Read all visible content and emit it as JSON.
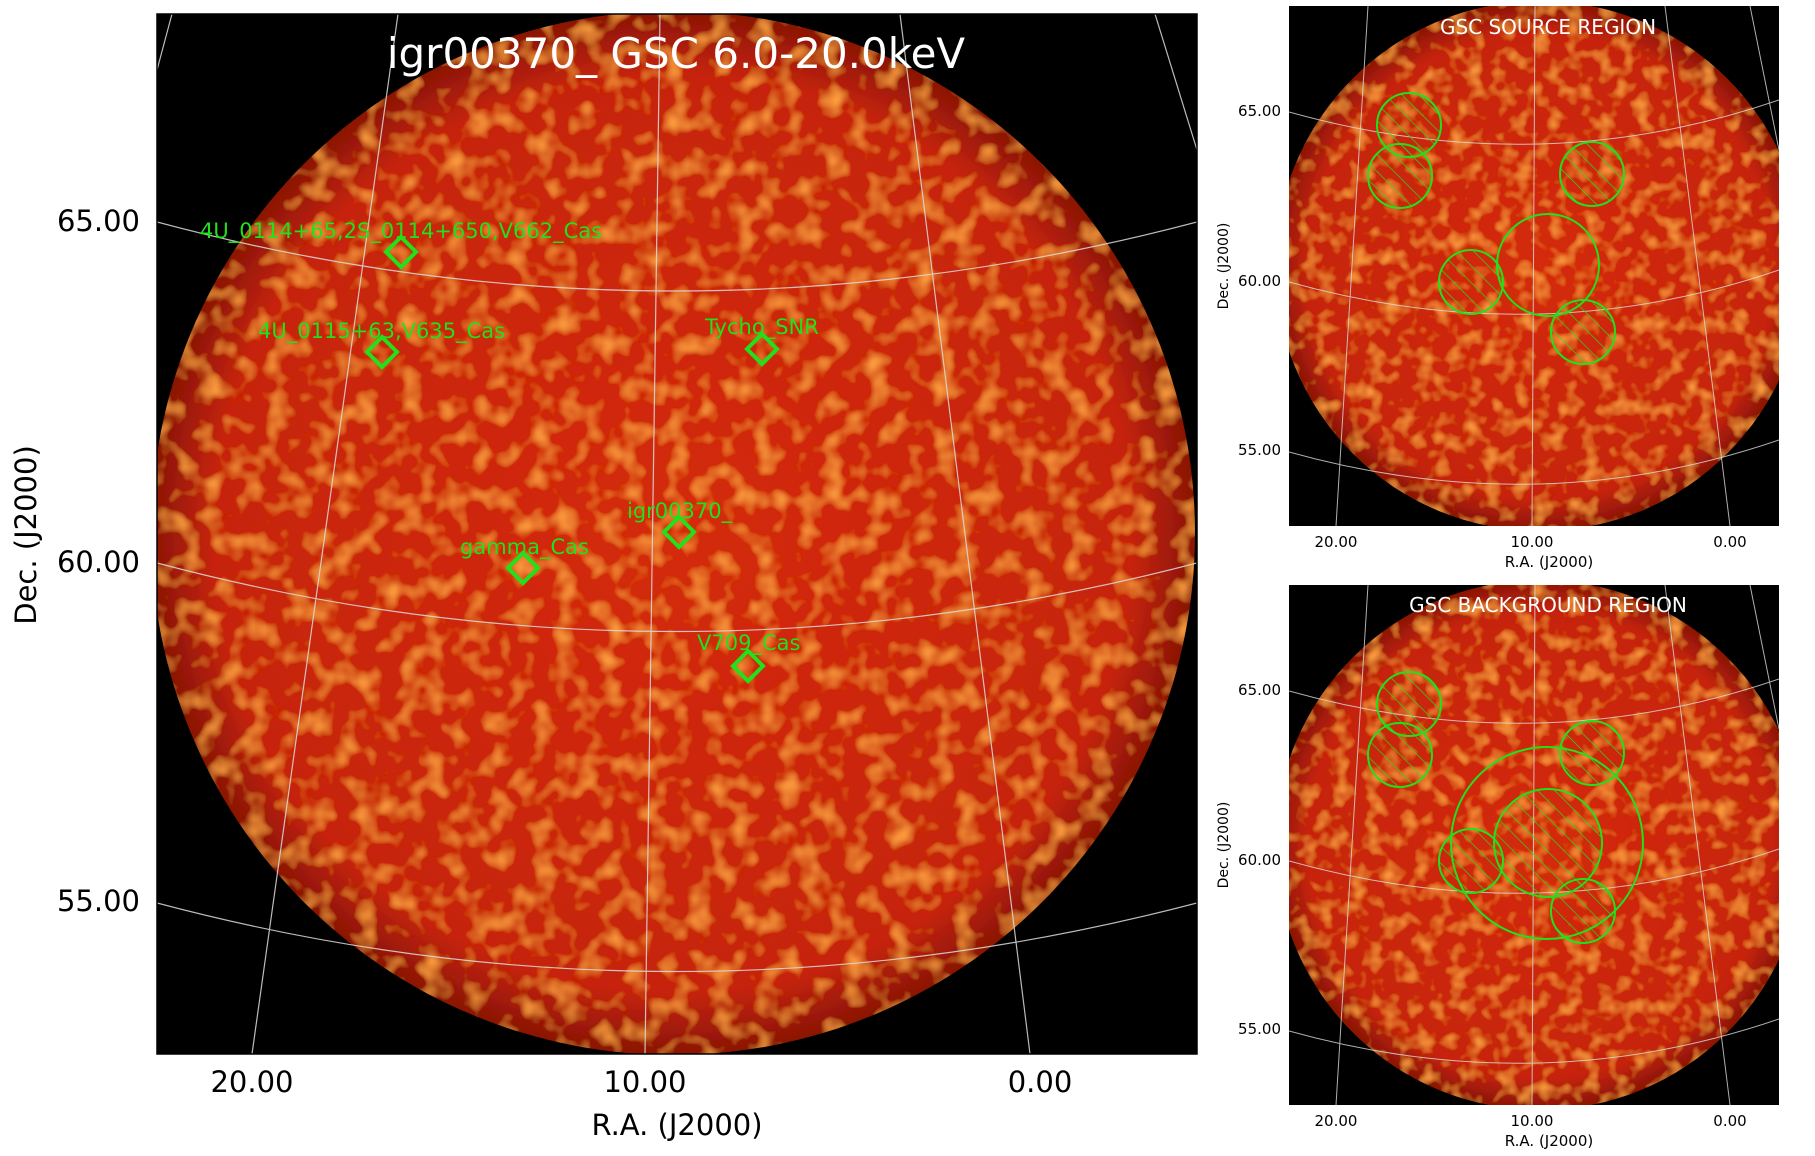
{
  "main_panel": {
    "title": "igr00370_ GSC 6.0-20.0keV",
    "xlabel": "R.A. (J2000)",
    "ylabel": "Dec. (J2000)",
    "xticks": [
      "20.00",
      "10.00",
      "0.00"
    ],
    "yticks": [
      "65.00",
      "60.00",
      "55.00"
    ],
    "sources": [
      {
        "label": "4U_0114+65,2S_0114+650,V662_Cas"
      },
      {
        "label": "4U_0115+63,V635_Cas"
      },
      {
        "label": "Tycho_SNR"
      },
      {
        "label": "igr00370_"
      },
      {
        "label": "gamma_Cas"
      },
      {
        "label": "V709_Cas"
      }
    ]
  },
  "source_panel": {
    "title": "GSC SOURCE REGION",
    "xlabel": "R.A. (J2000)",
    "ylabel": "Dec. (J2000)",
    "xticks": [
      "20.00",
      "10.00",
      "0.00"
    ],
    "yticks": [
      "65.00",
      "60.00",
      "55.00"
    ]
  },
  "background_panel": {
    "title": "GSC BACKGROUND REGION",
    "xlabel": "R.A. (J2000)",
    "ylabel": "Dec. (J2000)",
    "xticks": [
      "20.00",
      "10.00",
      "0.00"
    ],
    "yticks": [
      "65.00",
      "60.00",
      "55.00"
    ]
  },
  "colors": {
    "background": "#000000",
    "image_core": "#d42a10",
    "image_edge": "#a81a08",
    "region": "#22e01a",
    "grid": "#dddddd",
    "title": "#ffffff"
  }
}
